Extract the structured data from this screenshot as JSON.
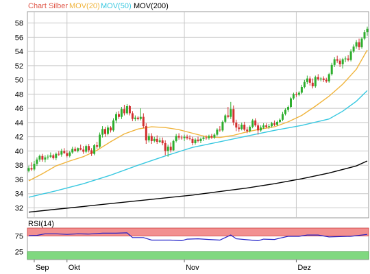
{
  "chart_data": {
    "type": "candlestick",
    "legend": [
      {
        "label": "Chart Silber",
        "color": "#e0584a"
      },
      {
        "label": "MOV(20)",
        "color": "#f0b43c"
      },
      {
        "label": "MOV(50)",
        "color": "#38c8e0"
      },
      {
        "label": "MOV(200)",
        "color": "#000000"
      }
    ],
    "ylim": [
      30.6,
      59.6
    ],
    "yticks": [
      32,
      34,
      36,
      38,
      40,
      42,
      44,
      46,
      48,
      50,
      52,
      54,
      56,
      58
    ],
    "xticks": [
      {
        "label": "Sep",
        "index": 2
      },
      {
        "label": "Okt",
        "index": 14
      },
      {
        "label": "Nov",
        "index": 57
      },
      {
        "label": "Dez",
        "index": 98
      }
    ],
    "num_candles": 125,
    "candles": [
      [
        37.2,
        37.9,
        37.0,
        37.6
      ],
      [
        37.6,
        38.4,
        37.2,
        37.4
      ],
      [
        37.4,
        38.6,
        37.2,
        38.2
      ],
      [
        38.2,
        39.1,
        37.9,
        38.8
      ],
      [
        38.8,
        39.5,
        38.5,
        39.3
      ],
      [
        39.3,
        39.6,
        38.5,
        38.8
      ],
      [
        38.8,
        39.4,
        38.4,
        39.1
      ],
      [
        39.1,
        39.5,
        38.8,
        39.2
      ],
      [
        39.2,
        39.8,
        39.0,
        39.4
      ],
      [
        39.4,
        39.6,
        38.8,
        39.0
      ],
      [
        39.0,
        39.8,
        38.7,
        39.6
      ],
      [
        39.6,
        40.0,
        39.3,
        39.5
      ],
      [
        39.5,
        40.3,
        39.2,
        40.0
      ],
      [
        40.0,
        40.4,
        39.6,
        39.7
      ],
      [
        39.7,
        40.1,
        39.1,
        39.3
      ],
      [
        39.3,
        40.0,
        39.1,
        39.8
      ],
      [
        39.8,
        40.6,
        39.6,
        40.3
      ],
      [
        40.3,
        40.6,
        39.9,
        40.0
      ],
      [
        40.0,
        40.5,
        39.8,
        40.4
      ],
      [
        40.4,
        40.9,
        40.1,
        40.2
      ],
      [
        40.2,
        40.7,
        39.6,
        39.9
      ],
      [
        39.9,
        40.9,
        39.7,
        40.7
      ],
      [
        40.7,
        41.0,
        39.8,
        40.1
      ],
      [
        40.1,
        40.4,
        39.3,
        39.6
      ],
      [
        39.6,
        41.0,
        39.4,
        40.8
      ],
      [
        40.8,
        41.3,
        40.3,
        40.6
      ],
      [
        40.6,
        42.6,
        40.4,
        42.3
      ],
      [
        42.3,
        43.5,
        41.9,
        43.1
      ],
      [
        43.1,
        43.4,
        42.0,
        42.4
      ],
      [
        42.4,
        43.6,
        42.2,
        43.3
      ],
      [
        43.3,
        43.5,
        42.6,
        42.9
      ],
      [
        42.9,
        44.6,
        42.7,
        44.3
      ],
      [
        44.3,
        45.5,
        43.9,
        45.2
      ],
      [
        45.2,
        45.6,
        44.5,
        44.8
      ],
      [
        44.8,
        46.2,
        44.5,
        45.9
      ],
      [
        45.9,
        46.5,
        45.0,
        45.3
      ],
      [
        45.3,
        46.6,
        45.1,
        46.3
      ],
      [
        46.3,
        46.5,
        45.0,
        45.3
      ],
      [
        45.3,
        45.6,
        44.2,
        44.5
      ],
      [
        44.5,
        45.0,
        44.2,
        44.7
      ],
      [
        44.7,
        44.9,
        44.3,
        44.5
      ],
      [
        44.5,
        46.0,
        44.3,
        44.8
      ],
      [
        44.8,
        45.3,
        43.2,
        43.5
      ],
      [
        43.5,
        43.9,
        41.0,
        41.5
      ],
      [
        41.5,
        42.5,
        41.2,
        42.1
      ],
      [
        42.1,
        42.5,
        41.0,
        41.4
      ],
      [
        41.4,
        42.0,
        41.2,
        41.7
      ],
      [
        41.7,
        42.2,
        41.0,
        41.3
      ],
      [
        41.3,
        41.9,
        41.1,
        41.5
      ],
      [
        41.5,
        41.9,
        40.8,
        41.1
      ],
      [
        41.1,
        41.5,
        39.4,
        40.0
      ],
      [
        40.0,
        40.9,
        39.2,
        40.6
      ],
      [
        40.6,
        41.2,
        39.8,
        40.1
      ],
      [
        40.1,
        41.6,
        40.0,
        41.4
      ],
      [
        41.4,
        42.4,
        41.2,
        42.1
      ],
      [
        42.1,
        42.5,
        41.6,
        41.9
      ],
      [
        41.9,
        42.2,
        41.6,
        41.8
      ],
      [
        41.8,
        42.3,
        41.4,
        42.0
      ],
      [
        42.0,
        42.3,
        41.6,
        41.8
      ],
      [
        41.8,
        42.2,
        41.5,
        41.7
      ],
      [
        41.7,
        42.0,
        40.8,
        41.1
      ],
      [
        41.1,
        41.8,
        40.9,
        41.6
      ],
      [
        41.6,
        42.0,
        41.2,
        41.4
      ],
      [
        41.4,
        41.9,
        41.1,
        41.7
      ],
      [
        41.7,
        42.1,
        41.4,
        41.9
      ],
      [
        41.9,
        42.2,
        41.6,
        41.8
      ],
      [
        41.8,
        42.3,
        41.6,
        42.1
      ],
      [
        42.1,
        42.4,
        41.7,
        41.9
      ],
      [
        41.9,
        42.5,
        41.7,
        42.3
      ],
      [
        42.3,
        43.2,
        42.1,
        43.0
      ],
      [
        43.0,
        43.5,
        42.7,
        42.9
      ],
      [
        42.9,
        44.3,
        42.7,
        44.1
      ],
      [
        44.1,
        45.2,
        43.9,
        45.0
      ],
      [
        45.0,
        46.2,
        44.6,
        44.8
      ],
      [
        44.8,
        46.9,
        44.5,
        45.9
      ],
      [
        45.9,
        46.4,
        43.6,
        44.0
      ],
      [
        44.0,
        44.4,
        42.8,
        43.3
      ],
      [
        43.3,
        43.8,
        42.7,
        43.1
      ],
      [
        43.1,
        44.0,
        42.9,
        43.7
      ],
      [
        43.7,
        44.1,
        42.8,
        43.0
      ],
      [
        43.0,
        43.4,
        42.5,
        42.8
      ],
      [
        42.8,
        43.6,
        42.6,
        43.4
      ],
      [
        43.4,
        44.5,
        43.2,
        44.3
      ],
      [
        44.3,
        44.6,
        43.4,
        43.6
      ],
      [
        43.6,
        43.9,
        42.3,
        42.9
      ],
      [
        42.9,
        43.6,
        42.7,
        43.3
      ],
      [
        43.3,
        43.9,
        43.1,
        43.6
      ],
      [
        43.6,
        43.9,
        43.2,
        43.4
      ],
      [
        43.4,
        43.8,
        43.1,
        43.5
      ],
      [
        43.5,
        44.1,
        43.3,
        43.9
      ],
      [
        43.9,
        44.3,
        43.5,
        43.7
      ],
      [
        43.7,
        44.3,
        43.5,
        44.1
      ],
      [
        44.1,
        44.6,
        43.9,
        44.4
      ],
      [
        44.4,
        45.5,
        44.2,
        45.2
      ],
      [
        45.2,
        46.0,
        45.0,
        45.8
      ],
      [
        45.8,
        46.4,
        45.5,
        46.2
      ],
      [
        46.2,
        47.6,
        46.0,
        47.4
      ],
      [
        47.4,
        48.2,
        47.2,
        48.0
      ],
      [
        48.0,
        48.3,
        47.6,
        47.9
      ],
      [
        47.9,
        48.4,
        47.7,
        48.2
      ],
      [
        48.2,
        49.3,
        48.0,
        49.0
      ],
      [
        49.0,
        50.0,
        48.8,
        49.7
      ],
      [
        49.7,
        50.6,
        49.4,
        50.2
      ],
      [
        50.2,
        50.5,
        49.2,
        49.6
      ],
      [
        49.6,
        50.2,
        48.8,
        49.1
      ],
      [
        49.1,
        50.6,
        48.9,
        50.4
      ],
      [
        50.4,
        50.8,
        49.9,
        50.1
      ],
      [
        50.1,
        50.4,
        49.8,
        50.2
      ],
      [
        50.2,
        50.5,
        49.7,
        50.0
      ],
      [
        50.0,
        50.3,
        49.6,
        49.8
      ],
      [
        49.8,
        51.0,
        49.6,
        50.8
      ],
      [
        50.8,
        52.4,
        50.6,
        52.1
      ],
      [
        52.1,
        53.2,
        51.8,
        52.9
      ],
      [
        52.9,
        53.4,
        52.4,
        52.7
      ],
      [
        52.7,
        53.0,
        51.8,
        52.2
      ],
      [
        52.2,
        53.1,
        51.6,
        52.9
      ],
      [
        52.9,
        53.3,
        52.5,
        53.0
      ],
      [
        53.0,
        53.5,
        52.6,
        52.8
      ],
      [
        52.8,
        54.3,
        52.6,
        54.0
      ],
      [
        54.0,
        55.0,
        53.8,
        54.7
      ],
      [
        54.7,
        55.6,
        54.4,
        55.3
      ],
      [
        55.3,
        55.8,
        54.2,
        54.6
      ],
      [
        54.6,
        56.0,
        54.4,
        55.8
      ],
      [
        55.8,
        57.0,
        55.6,
        56.7
      ],
      [
        56.7,
        57.5,
        56.2,
        57.2
      ]
    ],
    "mov20": [
      [
        0,
        35.8
      ],
      [
        5,
        36.8
      ],
      [
        10,
        37.9
      ],
      [
        15,
        38.6
      ],
      [
        20,
        39.2
      ],
      [
        25,
        40.1
      ],
      [
        30,
        41.3
      ],
      [
        35,
        42.4
      ],
      [
        40,
        43.1
      ],
      [
        45,
        43.4
      ],
      [
        50,
        43.3
      ],
      [
        55,
        43.0
      ],
      [
        60,
        42.5
      ],
      [
        65,
        42.0
      ],
      [
        70,
        41.9
      ],
      [
        75,
        42.2
      ],
      [
        80,
        42.7
      ],
      [
        85,
        43.1
      ],
      [
        90,
        43.4
      ],
      [
        95,
        44.1
      ],
      [
        100,
        45.0
      ],
      [
        105,
        46.3
      ],
      [
        110,
        47.7
      ],
      [
        115,
        49.4
      ],
      [
        120,
        51.5
      ],
      [
        124,
        54.2
      ]
    ],
    "mov50": [
      [
        0,
        33.5
      ],
      [
        10,
        34.4
      ],
      [
        20,
        35.4
      ],
      [
        30,
        36.6
      ],
      [
        40,
        38.0
      ],
      [
        50,
        39.3
      ],
      [
        60,
        40.5
      ],
      [
        70,
        41.3
      ],
      [
        80,
        42.1
      ],
      [
        90,
        42.9
      ],
      [
        100,
        43.6
      ],
      [
        110,
        44.5
      ],
      [
        115,
        45.6
      ],
      [
        120,
        47.0
      ],
      [
        124,
        48.5
      ]
    ],
    "mov200": [
      [
        0,
        31.4
      ],
      [
        10,
        31.8
      ],
      [
        20,
        32.2
      ],
      [
        30,
        32.6
      ],
      [
        40,
        33.0
      ],
      [
        50,
        33.4
      ],
      [
        60,
        33.8
      ],
      [
        70,
        34.3
      ],
      [
        80,
        34.8
      ],
      [
        90,
        35.4
      ],
      [
        100,
        36.1
      ],
      [
        110,
        36.9
      ],
      [
        120,
        37.9
      ],
      [
        124,
        38.6
      ]
    ],
    "rsi": {
      "label": "RSI(14)",
      "levels": [
        25,
        75
      ],
      "ylim": [
        0,
        100
      ],
      "yticks": [
        25,
        75
      ],
      "values": [
        [
          0,
          76
        ],
        [
          3,
          77
        ],
        [
          6,
          82
        ],
        [
          10,
          82
        ],
        [
          14,
          80
        ],
        [
          18,
          82
        ],
        [
          22,
          81
        ],
        [
          27,
          84
        ],
        [
          32,
          84
        ],
        [
          36,
          85
        ],
        [
          38,
          70
        ],
        [
          42,
          70
        ],
        [
          45,
          62
        ],
        [
          48,
          62
        ],
        [
          52,
          62
        ],
        [
          56,
          60
        ],
        [
          58,
          65
        ],
        [
          62,
          66
        ],
        [
          66,
          64
        ],
        [
          70,
          62
        ],
        [
          72,
          70
        ],
        [
          74,
          78
        ],
        [
          76,
          66
        ],
        [
          80,
          63
        ],
        [
          84,
          60
        ],
        [
          86,
          65
        ],
        [
          90,
          64
        ],
        [
          92,
          68
        ],
        [
          95,
          74
        ],
        [
          99,
          74
        ],
        [
          102,
          78
        ],
        [
          106,
          78
        ],
        [
          110,
          72
        ],
        [
          114,
          73
        ],
        [
          118,
          74
        ],
        [
          124,
          80
        ]
      ]
    }
  }
}
